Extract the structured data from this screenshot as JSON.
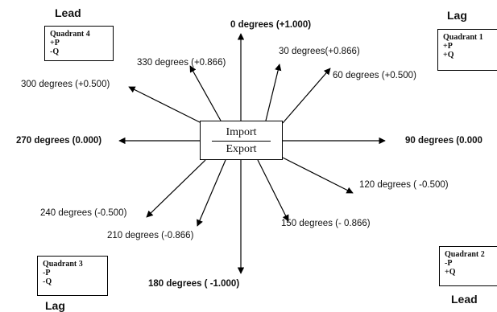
{
  "center": {
    "top": "Import",
    "bottom": "Export"
  },
  "corners": {
    "top_left": "Lead",
    "top_right": "Lag",
    "bottom_left": "Lag",
    "bottom_right": "Lead"
  },
  "quadrants": [
    {
      "title": "Quadrant 4",
      "p": "+P",
      "q": "-Q"
    },
    {
      "title": "Quadrant 1",
      "p": "+P",
      "q": "+Q"
    },
    {
      "title": "Quadrant 3",
      "p": "-P",
      "q": "-Q"
    },
    {
      "title": "Quadrant 2",
      "p": "-P",
      "q": "+Q"
    }
  ],
  "angles": [
    {
      "label": "0 degrees (+1.000)",
      "bold": true
    },
    {
      "label": "30 degrees(+0.866)",
      "bold": false
    },
    {
      "label": "60 degrees (+0.500)",
      "bold": false
    },
    {
      "label": "90 degrees (0.000",
      "bold": true
    },
    {
      "label": "120 degrees ( -0.500)",
      "bold": false
    },
    {
      "label": "150 degrees (- 0.866)",
      "bold": false
    },
    {
      "label": "180 degrees ( -1.000)",
      "bold": true
    },
    {
      "label": "210 degrees (-0.866)",
      "bold": false
    },
    {
      "label": "240 degrees (-0.500)",
      "bold": false
    },
    {
      "label": "270 degrees (0.000)",
      "bold": true
    },
    {
      "label": "300 degrees (+0.500)",
      "bold": false
    },
    {
      "label": "330 degrees (+0.866)",
      "bold": false
    }
  ]
}
